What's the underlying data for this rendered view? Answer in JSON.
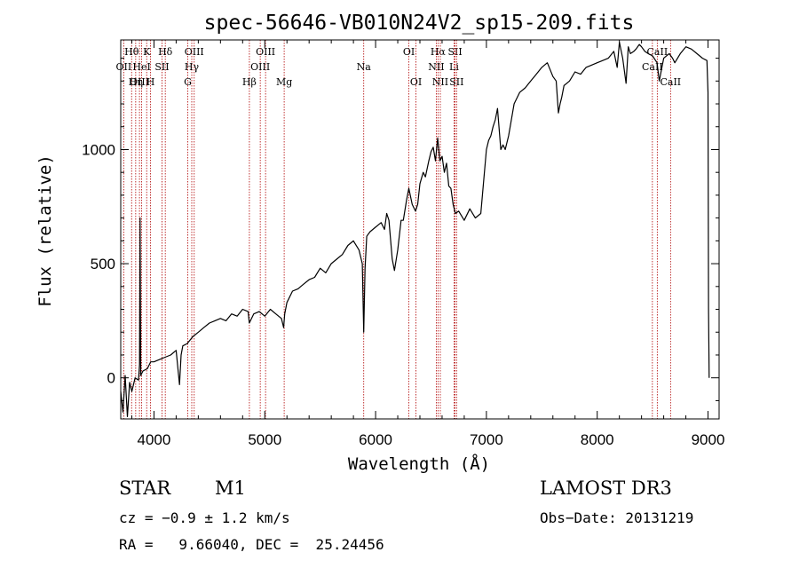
{
  "chart_data": {
    "type": "line",
    "title": "spec-56646-VB010N24V2_sp15-209.fits",
    "xlabel": "Wavelength (Å)",
    "ylabel": "Flux (relative)",
    "xlim": [
      3700,
      9100
    ],
    "ylim": [
      -180,
      1480
    ],
    "xticks": [
      4000,
      5000,
      6000,
      7000,
      8000,
      9000
    ],
    "yticks": [
      0,
      500,
      1000
    ],
    "series": [
      {
        "name": "flux",
        "color": "#000000",
        "x": [
          3700,
          3720,
          3740,
          3760,
          3780,
          3800,
          3830,
          3860,
          3870,
          3875,
          3880,
          3900,
          3940,
          3970,
          4000,
          4050,
          4100,
          4150,
          4200,
          4230,
          4245,
          4260,
          4300,
          4350,
          4400,
          4450,
          4500,
          4550,
          4600,
          4650,
          4700,
          4750,
          4800,
          4850,
          4860,
          4900,
          4950,
          5000,
          5050,
          5100,
          5150,
          5170,
          5180,
          5200,
          5250,
          5300,
          5350,
          5400,
          5450,
          5500,
          5550,
          5600,
          5650,
          5700,
          5750,
          5800,
          5850,
          5880,
          5893,
          5905,
          5920,
          5950,
          6000,
          6050,
          6080,
          6100,
          6120,
          6150,
          6170,
          6200,
          6230,
          6250,
          6280,
          6300,
          6330,
          6360,
          6380,
          6400,
          6430,
          6450,
          6480,
          6500,
          6520,
          6540,
          6560,
          6580,
          6600,
          6620,
          6640,
          6660,
          6680,
          6700,
          6720,
          6750,
          6800,
          6850,
          6900,
          6950,
          7000,
          7020,
          7040,
          7060,
          7080,
          7100,
          7130,
          7150,
          7170,
          7200,
          7250,
          7300,
          7350,
          7400,
          7450,
          7500,
          7550,
          7600,
          7630,
          7650,
          7665,
          7680,
          7700,
          7750,
          7800,
          7850,
          7900,
          7950,
          8000,
          8050,
          8100,
          8150,
          8180,
          8200,
          8230,
          8260,
          8280,
          8300,
          8330,
          8350,
          8380,
          8400,
          8430,
          8460,
          8500,
          8540,
          8560,
          8600,
          8650,
          8680,
          8700,
          8750,
          8800,
          8850,
          8900,
          8950,
          8990,
          9000,
          9005,
          9010
        ],
        "y": [
          -60,
          -150,
          10,
          -170,
          -20,
          -60,
          0,
          -10,
          60,
          700,
          10,
          30,
          40,
          70,
          70,
          80,
          90,
          100,
          120,
          -30,
          100,
          140,
          150,
          180,
          200,
          220,
          240,
          250,
          260,
          250,
          280,
          270,
          300,
          290,
          240,
          280,
          290,
          270,
          300,
          280,
          260,
          220,
          280,
          330,
          380,
          390,
          410,
          430,
          440,
          480,
          460,
          500,
          520,
          540,
          580,
          600,
          560,
          500,
          200,
          480,
          620,
          640,
          660,
          680,
          650,
          720,
          690,
          520,
          470,
          560,
          690,
          690,
          780,
          830,
          760,
          730,
          760,
          850,
          900,
          880,
          950,
          990,
          1010,
          950,
          1050,
          950,
          970,
          900,
          940,
          840,
          830,
          760,
          720,
          730,
          690,
          740,
          700,
          720,
          1000,
          1040,
          1060,
          1100,
          1130,
          1180,
          1000,
          1020,
          1000,
          1060,
          1200,
          1250,
          1270,
          1300,
          1330,
          1360,
          1380,
          1320,
          1300,
          1160,
          1200,
          1230,
          1280,
          1300,
          1340,
          1330,
          1360,
          1370,
          1380,
          1390,
          1400,
          1430,
          1360,
          1470,
          1400,
          1290,
          1450,
          1420,
          1430,
          1440,
          1460,
          1450,
          1430,
          1420,
          1410,
          1380,
          1300,
          1400,
          1420,
          1400,
          1380,
          1420,
          1450,
          1440,
          1420,
          1400,
          1390,
          1250,
          300,
          0
        ]
      }
    ],
    "lines": [
      {
        "name": "Hθ",
        "x": 3798,
        "row": 0
      },
      {
        "name": "OII",
        "x": 3727,
        "row": 1
      },
      {
        "name": "OIII",
        "x": 3869,
        "row": 2
      },
      {
        "name": "HeI",
        "x": 3889,
        "row": 1
      },
      {
        "name": "Hη",
        "x": 3835,
        "row": 2
      },
      {
        "name": "K",
        "x": 3934,
        "row": 0
      },
      {
        "name": "H",
        "x": 3969,
        "row": 2
      },
      {
        "name": "SII",
        "x": 4072,
        "row": 1
      },
      {
        "name": "Hδ",
        "x": 4102,
        "row": 0
      },
      {
        "name": "OIII",
        "x": 4363,
        "row": 0
      },
      {
        "name": "Hγ",
        "x": 4341,
        "row": 1
      },
      {
        "name": "G",
        "x": 4305,
        "row": 2
      },
      {
        "name": "Hβ",
        "x": 4861,
        "row": 2
      },
      {
        "name": "OIII",
        "x": 5007,
        "row": 0
      },
      {
        "name": "OIII",
        "x": 4959,
        "row": 1
      },
      {
        "name": "Mg",
        "x": 5175,
        "row": 2
      },
      {
        "name": "Na",
        "x": 5893,
        "row": 1
      },
      {
        "name": "OI",
        "x": 6300,
        "row": 0
      },
      {
        "name": "OI",
        "x": 6364,
        "row": 2
      },
      {
        "name": "Hα",
        "x": 6563,
        "row": 0
      },
      {
        "name": "NII",
        "x": 6548,
        "row": 1
      },
      {
        "name": "NII",
        "x": 6584,
        "row": 2
      },
      {
        "name": "SII",
        "x": 6717,
        "row": 0
      },
      {
        "name": "Li",
        "x": 6708,
        "row": 1
      },
      {
        "name": "SII",
        "x": 6731,
        "row": 2
      },
      {
        "name": "CaII",
        "x": 8542,
        "row": 0
      },
      {
        "name": "CaII",
        "x": 8498,
        "row": 1
      },
      {
        "name": "CaII",
        "x": 8662,
        "row": 2
      }
    ]
  },
  "info": {
    "object_type": "STAR",
    "subclass": "M1",
    "survey": "LAMOST DR3",
    "cz": "cz = −0.9 ± 1.2 km/s",
    "obs_date": "Obs−Date: 20131219",
    "coords": "RA =   9.66040, DEC =  25.24456"
  },
  "colors": {
    "line_marker": "#b00000",
    "spectrum": "#000000",
    "axis": "#000000"
  }
}
